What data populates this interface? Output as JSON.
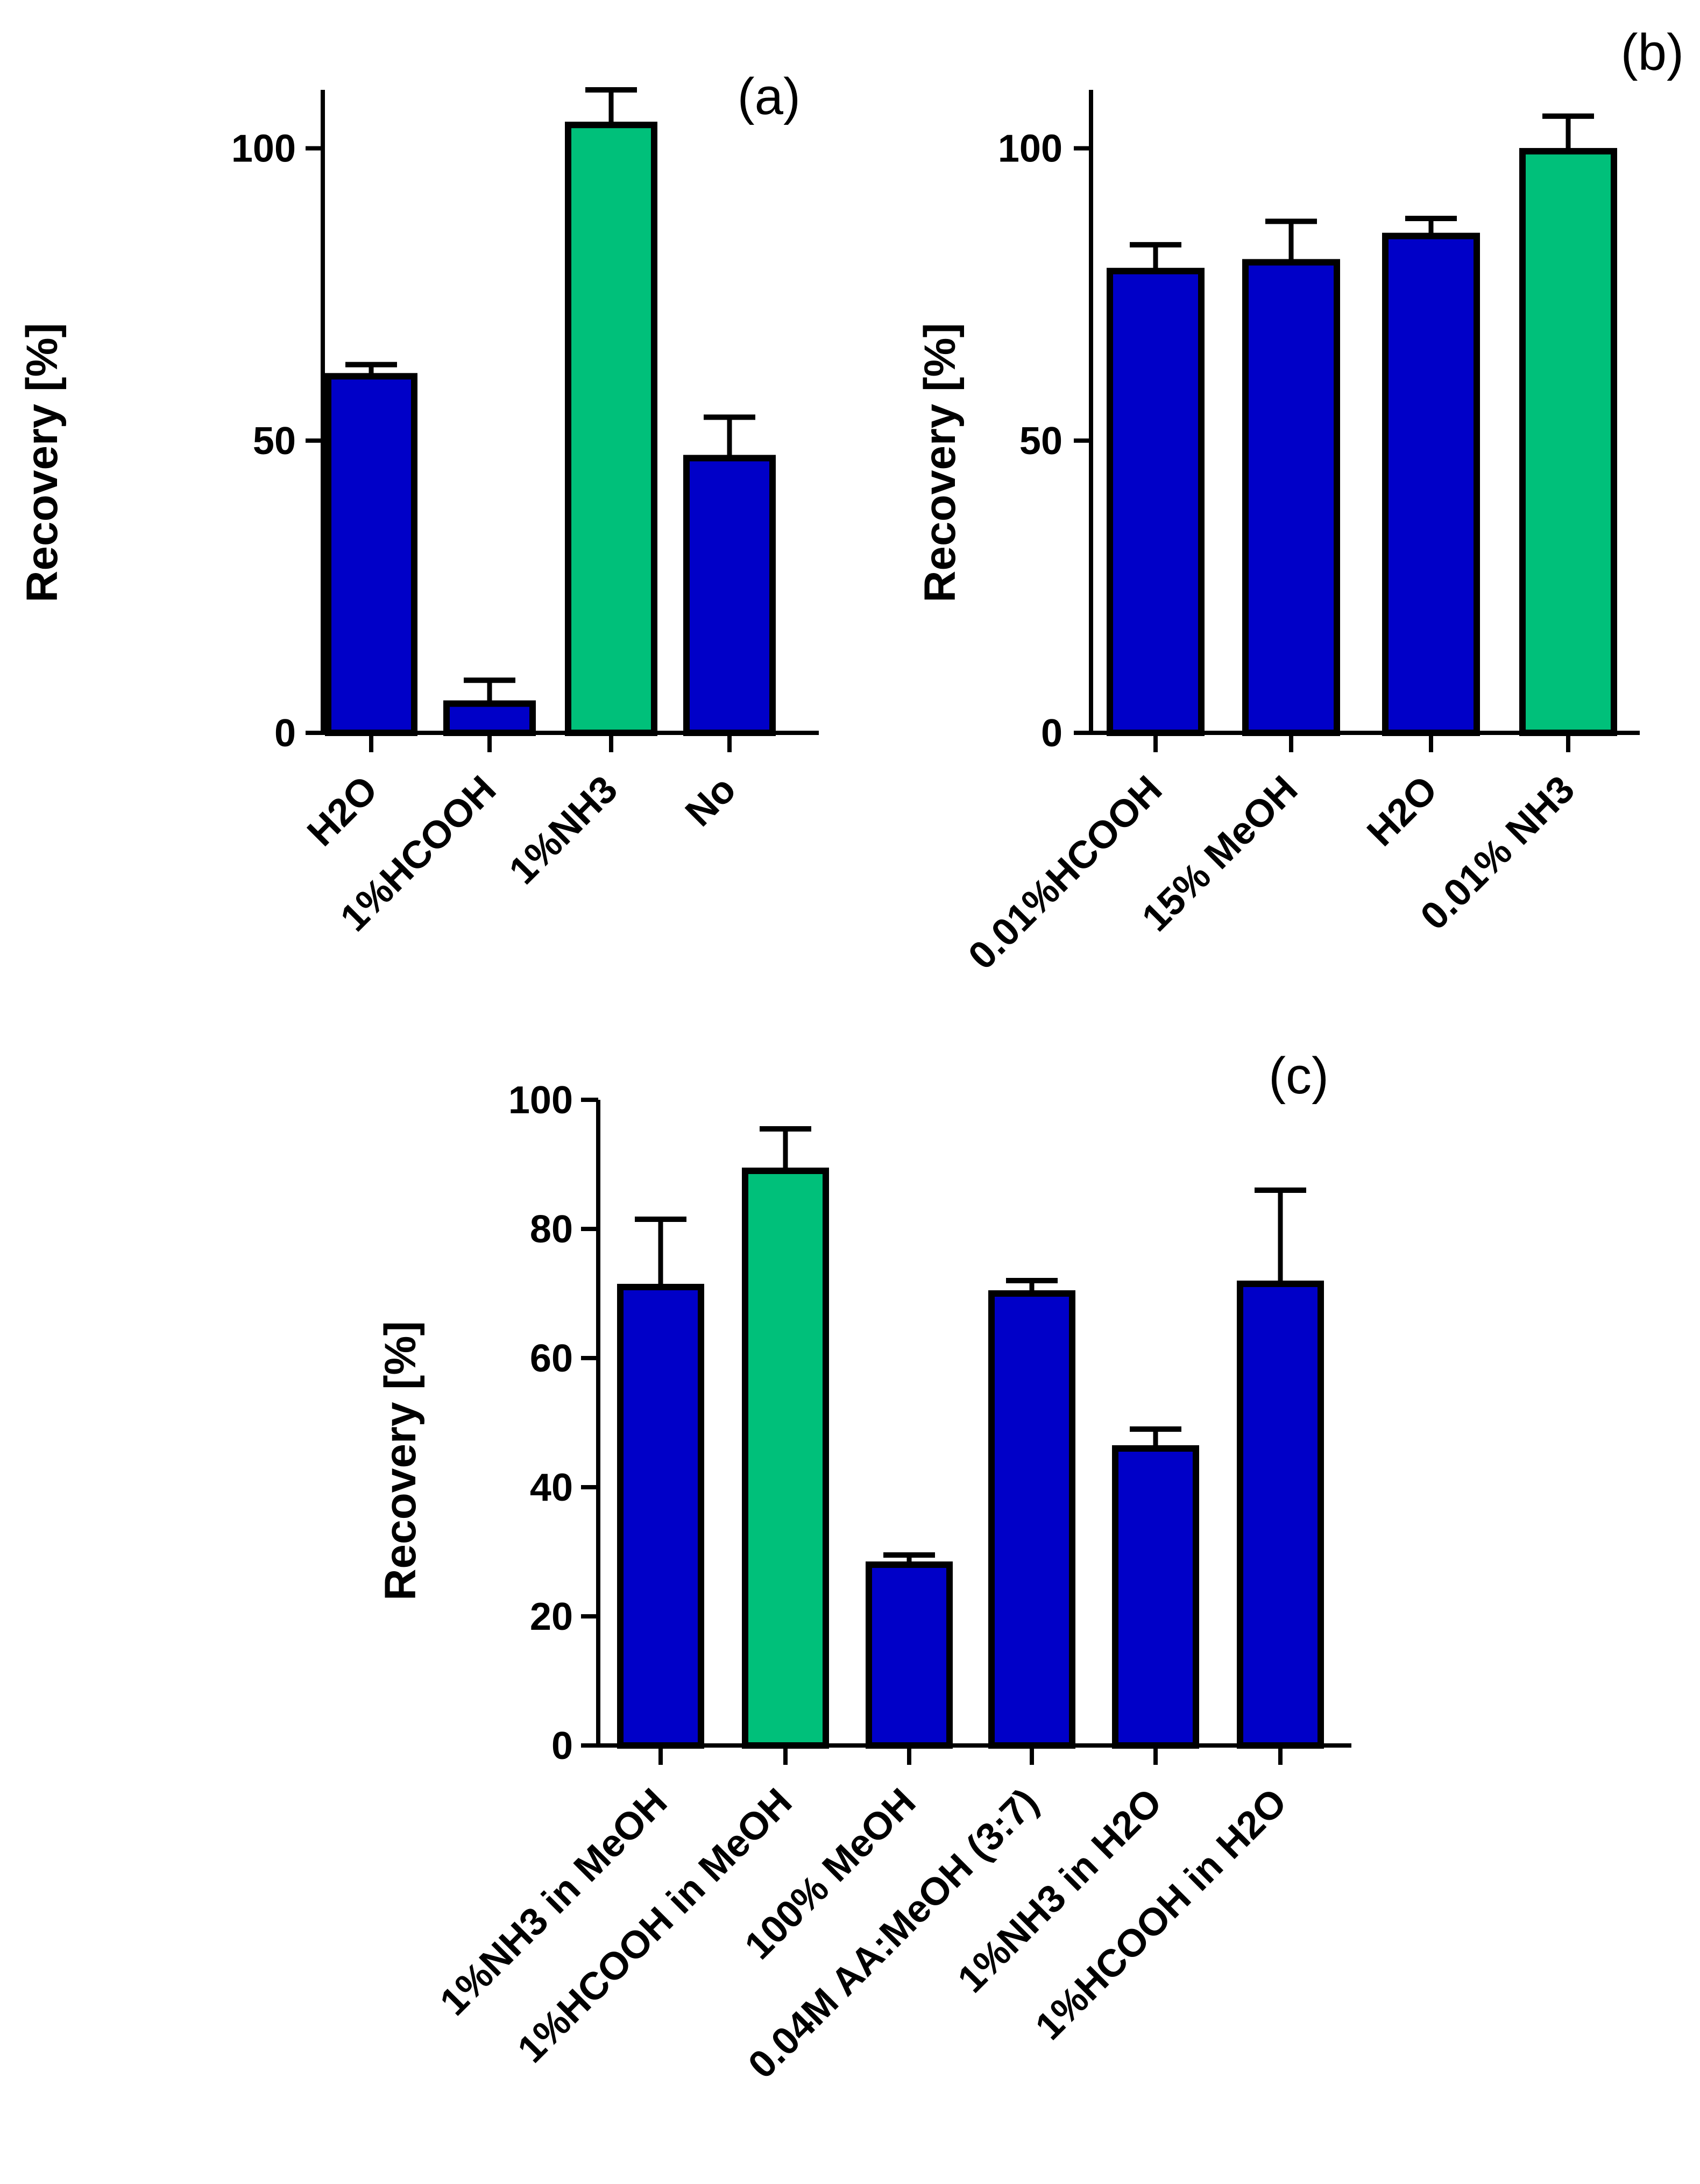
{
  "colors": {
    "blue": "#0000c8",
    "green": "#00c07a",
    "outline": "#000000"
  },
  "chart_data": [
    {
      "type": "bar",
      "panel_label": "(a)",
      "categories": [
        "H2O",
        "1%HCOOH",
        "1%NH3",
        "No"
      ],
      "values": [
        61,
        5,
        104,
        47
      ],
      "errors": [
        2,
        4,
        6,
        7
      ],
      "colors": [
        "blue",
        "blue",
        "green",
        "blue"
      ],
      "ylabel": "Recovery [%]",
      "ylim": [
        0,
        110
      ],
      "yticks": [
        0,
        50,
        100
      ]
    },
    {
      "type": "bar",
      "panel_label": "(b)",
      "categories": [
        "0.01%HCOOH",
        "15% MeOH",
        "H2O",
        "0.01% NH3"
      ],
      "values": [
        79,
        80.5,
        85,
        99.5
      ],
      "errors": [
        4.5,
        7,
        3,
        6
      ],
      "colors": [
        "blue",
        "blue",
        "blue",
        "green"
      ],
      "ylabel": "Recovery [%]",
      "ylim": [
        0,
        110
      ],
      "yticks": [
        0,
        50,
        100
      ]
    },
    {
      "type": "bar",
      "panel_label": "(c)",
      "categories": [
        "1%NH3 in MeOH",
        "1%HCOOH in MeOH",
        "100% MeOH",
        "0.04M AA:MeOH (3:7)",
        "1%NH3 in H2O",
        "1%HCOOH in H2O"
      ],
      "values": [
        71,
        89,
        28,
        70,
        46,
        71.5
      ],
      "errors": [
        10.5,
        6.5,
        1.5,
        2,
        3,
        14.5
      ],
      "colors": [
        "blue",
        "green",
        "blue",
        "blue",
        "blue",
        "blue"
      ],
      "ylabel": "Recovery [%]",
      "ylim": [
        0,
        100
      ],
      "yticks": [
        0,
        20,
        40,
        60,
        80,
        100
      ]
    }
  ]
}
